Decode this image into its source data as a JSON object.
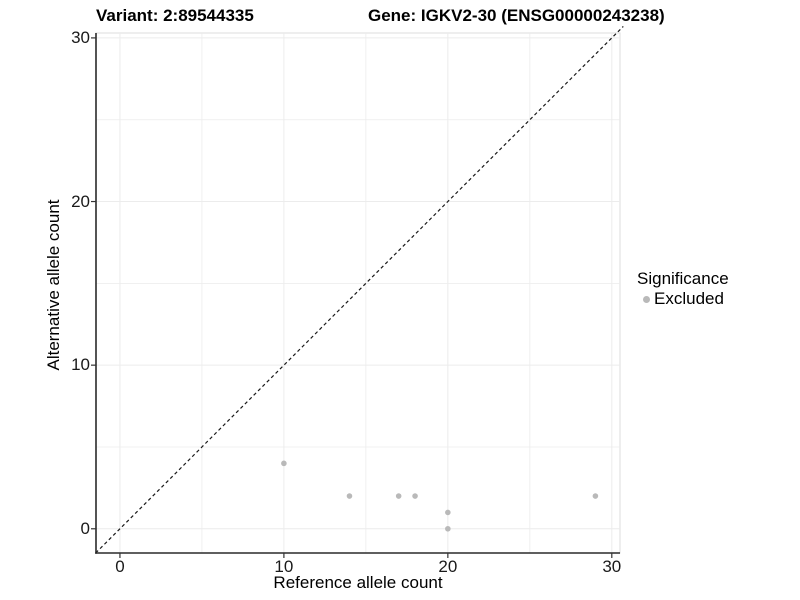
{
  "titles": {
    "left": "Variant: 2:89544335",
    "right": "Gene: IGKV2-30 (ENSG00000243238)"
  },
  "chart_data": {
    "type": "scatter",
    "title_left": "Variant: 2:89544335",
    "title_right": "Gene: IGKV2-30 (ENSG00000243238)",
    "xlabel": "Reference allele count",
    "ylabel": "Alternative allele count",
    "xlim": [
      -1.46,
      30.5
    ],
    "ylim": [
      -1.48,
      30.3
    ],
    "x_major_ticks": [
      0,
      10,
      20,
      30
    ],
    "x_minor_ticks": [
      5,
      15,
      25
    ],
    "y_major_ticks": [
      0,
      10,
      20,
      30
    ],
    "y_minor_ticks": [
      5,
      15,
      25
    ],
    "grid": "major+minor",
    "identity_line": {
      "slope": 1,
      "intercept": 0,
      "style": "dashed",
      "color": "#1a1a1a"
    },
    "series": [
      {
        "name": "Excluded",
        "color": "#b9b9b9",
        "points": [
          [
            10,
            4
          ],
          [
            14,
            2
          ],
          [
            17,
            2
          ],
          [
            18,
            2
          ],
          [
            20,
            1
          ],
          [
            20,
            0
          ],
          [
            29,
            2
          ]
        ]
      }
    ],
    "legend": {
      "title": "Significance",
      "position": "right",
      "items": [
        {
          "label": "Excluded",
          "color": "#b9b9b9",
          "marker": "circle"
        }
      ]
    }
  },
  "colors": {
    "background": "#ffffff",
    "grid": "#ececec",
    "panel_border": "#dcdcdc",
    "axis_line": "#2a2a2a",
    "tick_mark": "#333333",
    "point": "#b9b9b9",
    "title_text": "#000000",
    "tick_text": "#1a1a1a"
  }
}
